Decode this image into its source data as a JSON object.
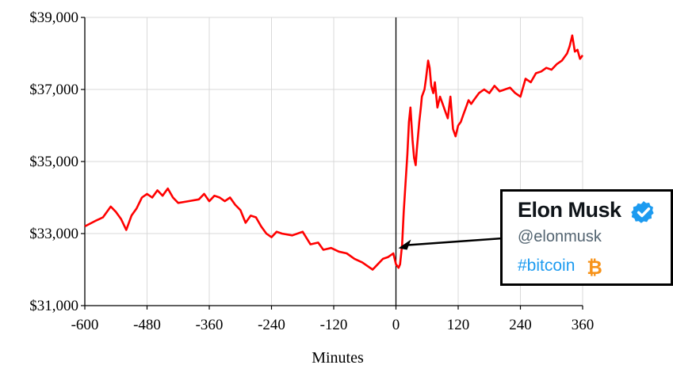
{
  "chart_data": {
    "type": "line",
    "title": "",
    "xlabel": "Minutes",
    "ylabel": "",
    "xlim": [
      -600,
      360
    ],
    "ylim": [
      31000,
      39000
    ],
    "x_ticks": [
      -600,
      -480,
      -360,
      -240,
      -120,
      0,
      120,
      240,
      360
    ],
    "x_tick_labels": [
      "-600",
      "-480",
      "-360",
      "-240",
      "-120",
      "0",
      "120",
      "240",
      "360"
    ],
    "y_ticks": [
      31000,
      33000,
      35000,
      37000,
      39000
    ],
    "y_tick_labels": [
      "$31,000",
      "$33,000",
      "$35,000",
      "$37,000",
      "$39,000"
    ],
    "grid": true,
    "vertical_marker_x": 0,
    "series": [
      {
        "color": "#ff0000",
        "x": [
          -600,
          -580,
          -565,
          -550,
          -540,
          -530,
          -520,
          -510,
          -500,
          -490,
          -480,
          -470,
          -460,
          -450,
          -440,
          -430,
          -420,
          -400,
          -380,
          -370,
          -360,
          -350,
          -340,
          -330,
          -320,
          -310,
          -300,
          -290,
          -280,
          -270,
          -260,
          -250,
          -240,
          -230,
          -220,
          -200,
          -180,
          -165,
          -150,
          -140,
          -125,
          -110,
          -95,
          -80,
          -65,
          -55,
          -45,
          -35,
          -25,
          -15,
          -5,
          0,
          5,
          8,
          12,
          15,
          18,
          22,
          25,
          28,
          32,
          35,
          38,
          40,
          45,
          48,
          50,
          55,
          58,
          62,
          65,
          68,
          72,
          75,
          80,
          85,
          90,
          95,
          100,
          105,
          110,
          115,
          120,
          125,
          130,
          135,
          140,
          145,
          150,
          160,
          170,
          180,
          190,
          200,
          210,
          220,
          230,
          240,
          250,
          260,
          270,
          280,
          290,
          300,
          310,
          320,
          330,
          335,
          340,
          345,
          350,
          355,
          360
        ],
        "y": [
          33200,
          33350,
          33450,
          33750,
          33600,
          33400,
          33100,
          33500,
          33700,
          34000,
          34100,
          34000,
          34200,
          34050,
          34250,
          34000,
          33850,
          33900,
          33950,
          34100,
          33900,
          34050,
          34000,
          33900,
          34000,
          33800,
          33650,
          33300,
          33500,
          33450,
          33200,
          33000,
          32900,
          33050,
          33000,
          32950,
          33050,
          32700,
          32750,
          32550,
          32600,
          32500,
          32450,
          32300,
          32200,
          32100,
          32000,
          32150,
          32300,
          32350,
          32450,
          32150,
          32050,
          32150,
          32700,
          33600,
          34300,
          35200,
          36100,
          36500,
          35600,
          35100,
          34900,
          35300,
          36100,
          36500,
          36800,
          37000,
          37300,
          37800,
          37600,
          37100,
          36900,
          37200,
          36500,
          36800,
          36600,
          36400,
          36200,
          36800,
          35900,
          35700,
          36000,
          36100,
          36300,
          36500,
          36700,
          36600,
          36700,
          36900,
          37000,
          36900,
          37100,
          36950,
          37000,
          37050,
          36900,
          36800,
          37300,
          37200,
          37450,
          37500,
          37600,
          37550,
          37700,
          37800,
          38000,
          38200,
          38500,
          38050,
          38100,
          37850,
          37950
        ]
      }
    ]
  },
  "tweet": {
    "name": "Elon Musk",
    "handle": "@elonmusk",
    "text": "#bitcoin",
    "verified_icon": "verified-badge-icon",
    "coin_icon": "bitcoin-icon",
    "name_color": "#0f1419",
    "handle_color": "#536471",
    "link_color": "#1d9bf0",
    "badge_color": "#1d9bf0",
    "coin_color": "#f7931a"
  }
}
